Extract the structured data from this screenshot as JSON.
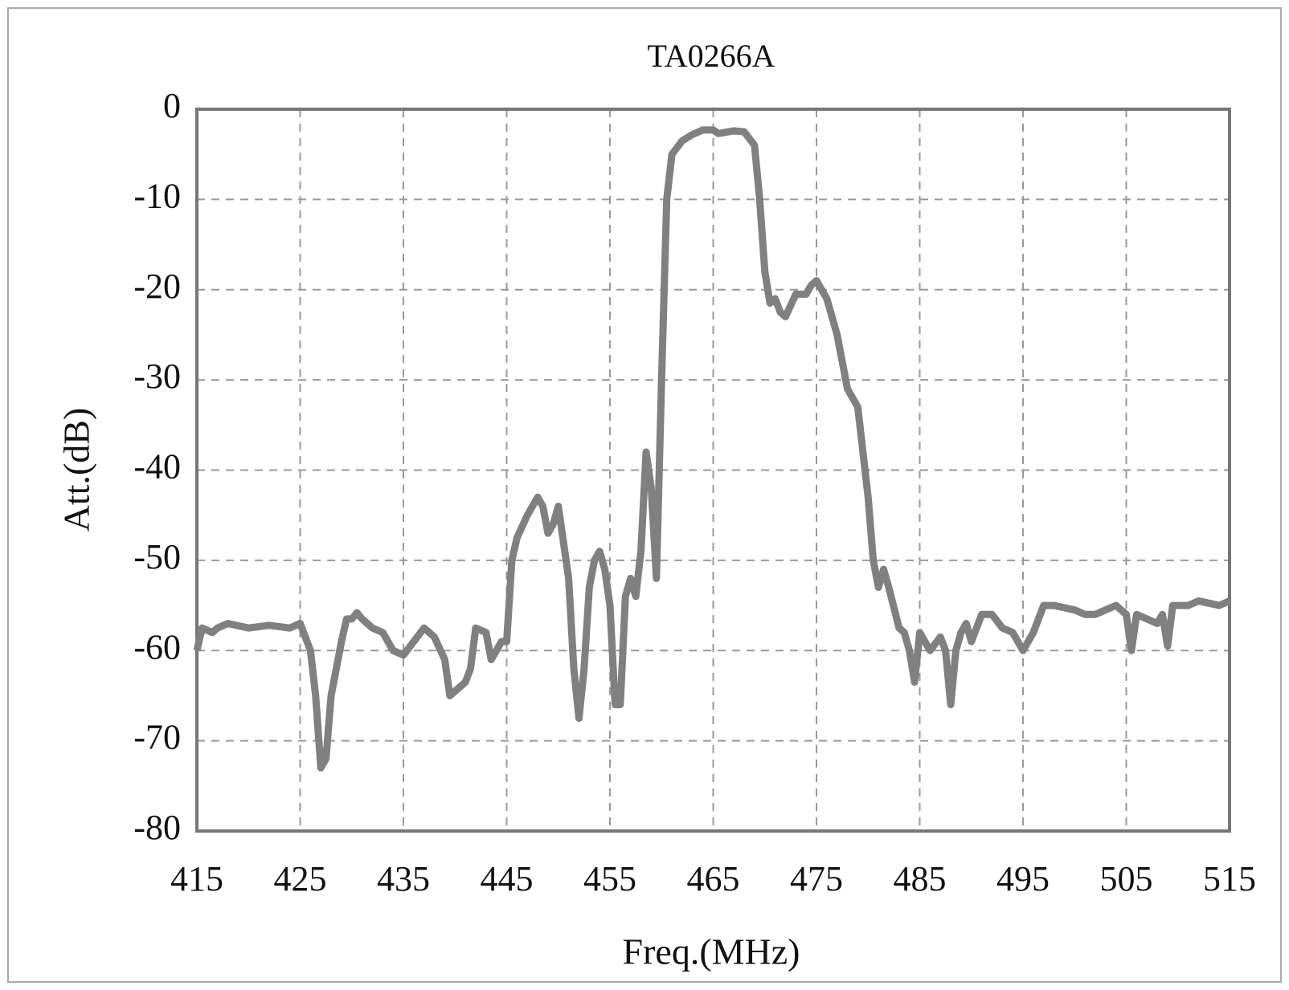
{
  "chart_data": {
    "type": "line",
    "title": "TA0266A",
    "xlabel": "Freq.(MHz)",
    "ylabel": "Att.(dB)",
    "xlim": [
      415,
      515
    ],
    "xticks": [
      415,
      425,
      435,
      445,
      455,
      465,
      475,
      485,
      495,
      505,
      515
    ],
    "ylim": [
      -80,
      0
    ],
    "yticks": [
      0,
      -10,
      -20,
      -30,
      -40,
      -50,
      -60,
      -70,
      -80
    ],
    "grid": true,
    "series": [
      {
        "name": "TA0266A",
        "color": "#808080",
        "x": [
          415,
          415.5,
          416.5,
          417,
          418,
          420,
          422,
          424,
          425,
          426,
          426.5,
          427,
          427.5,
          428,
          429,
          429.5,
          430,
          430.5,
          431,
          432,
          433,
          434,
          435,
          436,
          437,
          438,
          439,
          439.5,
          440,
          441,
          441.5,
          442,
          443,
          443.5,
          444,
          444.5,
          445,
          445.5,
          446,
          447,
          448,
          448.5,
          449,
          449.5,
          450,
          451,
          451.5,
          452,
          452.5,
          453,
          453.5,
          454,
          454.5,
          455,
          455.5,
          456,
          456.5,
          457,
          457.5,
          458,
          458.5,
          459,
          459.5,
          460,
          460.5,
          461,
          462,
          463,
          464,
          465,
          465.5,
          467,
          468,
          469,
          469.5,
          470,
          470.5,
          471,
          471.5,
          472,
          473,
          474,
          474.5,
          475,
          476,
          477,
          478,
          479,
          480,
          480.5,
          481,
          481.5,
          482,
          483,
          483.5,
          484,
          484.5,
          485,
          486,
          487,
          487.5,
          488,
          488.5,
          489,
          489.5,
          490,
          491,
          492,
          493,
          494,
          495,
          496,
          497,
          498,
          500,
          501,
          502,
          503,
          504,
          505,
          505.5,
          506,
          507,
          508,
          508.5,
          509,
          509.5,
          511,
          512,
          514,
          515
        ],
        "values": [
          -60,
          -57.5,
          -58,
          -57.5,
          -57,
          -57.5,
          -57.2,
          -57.5,
          -57,
          -60,
          -65,
          -73,
          -72,
          -65,
          -59,
          -56.5,
          -56.5,
          -55.8,
          -56.5,
          -57.5,
          -58,
          -60,
          -60.5,
          -59,
          -57.5,
          -58.5,
          -61,
          -65,
          -64.5,
          -63.5,
          -62,
          -57.5,
          -58,
          -61,
          -60,
          -59,
          -59,
          -50,
          -47.5,
          -45,
          -43,
          -44,
          -47,
          -46,
          -44,
          -52,
          -62,
          -67.5,
          -62,
          -53,
          -50,
          -49,
          -51,
          -55,
          -66,
          -66,
          -54,
          -52,
          -54,
          -49,
          -38,
          -42,
          -52,
          -30,
          -10,
          -5,
          -3.5,
          -2.8,
          -2.3,
          -2.3,
          -2.7,
          -2.4,
          -2.5,
          -4,
          -10,
          -18,
          -21.5,
          -21,
          -22.5,
          -23,
          -20.5,
          -20.5,
          -19.5,
          -19,
          -21,
          -25,
          -31,
          -33,
          -43,
          -50,
          -53,
          -51,
          -53,
          -57.5,
          -58,
          -60,
          -63.5,
          -58,
          -60,
          -58.5,
          -60,
          -66,
          -60,
          -58,
          -57,
          -59,
          -56,
          -56,
          -57.5,
          -58,
          -60,
          -58,
          -55,
          -55,
          -55.5,
          -56,
          -56,
          -55.5,
          -55,
          -56,
          -60,
          -56,
          -56.5,
          -57,
          -56,
          -59.5,
          -55,
          -55,
          -54.5,
          -55,
          -54.5
        ]
      }
    ]
  }
}
